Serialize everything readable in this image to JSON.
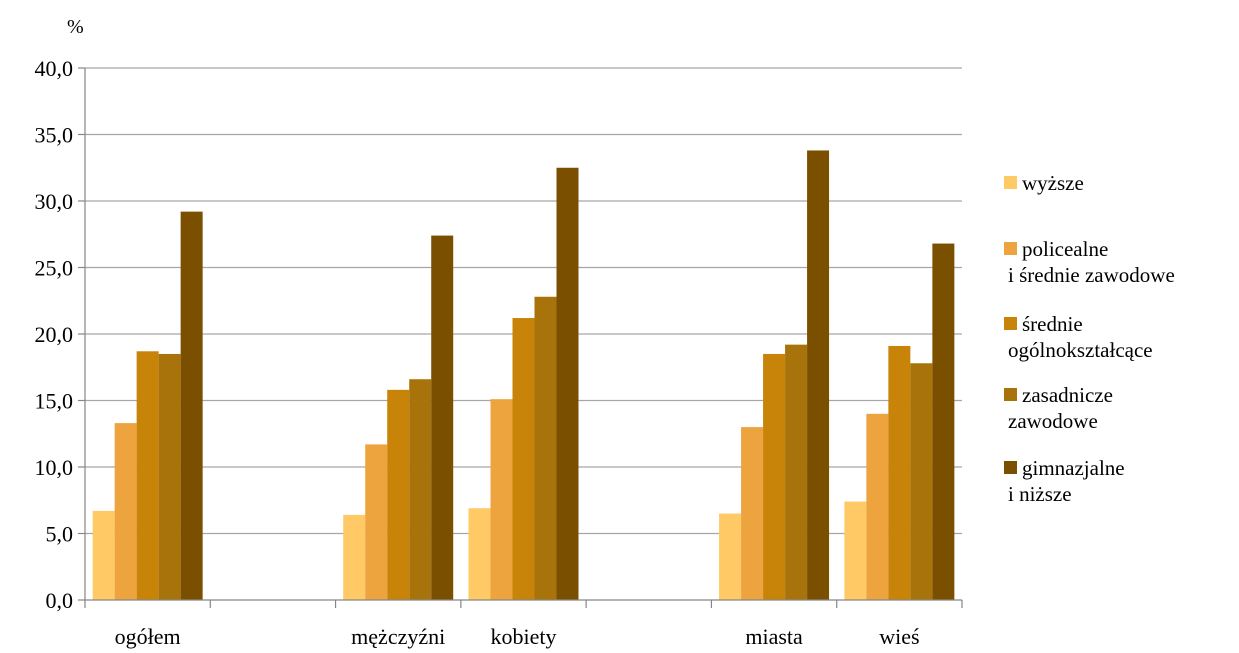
{
  "chart_data": {
    "type": "bar",
    "y_unit_label": "%",
    "categories": [
      "ogółem",
      "",
      "mężczyźni",
      "kobiety",
      "",
      "miasta",
      "wieś"
    ],
    "series": [
      {
        "name": "wyższe",
        "legend_lines": [
          "wyższe"
        ],
        "color": "#FFC966",
        "values": [
          6.7,
          null,
          6.4,
          6.9,
          null,
          6.5,
          7.4
        ]
      },
      {
        "name": "policealne i średnie zawodowe",
        "legend_lines": [
          "policealne",
          "i średnie zawodowe"
        ],
        "color": "#EDA43F",
        "values": [
          13.3,
          null,
          11.7,
          15.1,
          null,
          13.0,
          14.0
        ]
      },
      {
        "name": "średnie ogólnokształcące",
        "legend_lines": [
          "średnie",
          "ogólnokształcące"
        ],
        "color": "#C88408",
        "values": [
          18.7,
          null,
          15.8,
          21.2,
          null,
          18.5,
          19.1
        ]
      },
      {
        "name": "zasadnicze zawodowe",
        "legend_lines": [
          "zasadnicze",
          "zawodowe"
        ],
        "color": "#A8730B",
        "values": [
          18.5,
          null,
          16.6,
          22.8,
          null,
          19.2,
          17.8
        ]
      },
      {
        "name": "gimnazjalne i niższe",
        "legend_lines": [
          "gimnazjalne",
          "i niższe"
        ],
        "color": "#7A5000",
        "values": [
          29.2,
          null,
          27.4,
          32.5,
          null,
          33.8,
          26.8
        ]
      }
    ],
    "yticks": [
      "0,0",
      "5,0",
      "10,0",
      "15,0",
      "20,0",
      "25,0",
      "30,0",
      "35,0",
      "40,0"
    ],
    "ylim": [
      0,
      40
    ],
    "grid": true,
    "legend_position": "right",
    "colors": {
      "grid": "#A6A6A6",
      "axis": "#868686"
    }
  }
}
